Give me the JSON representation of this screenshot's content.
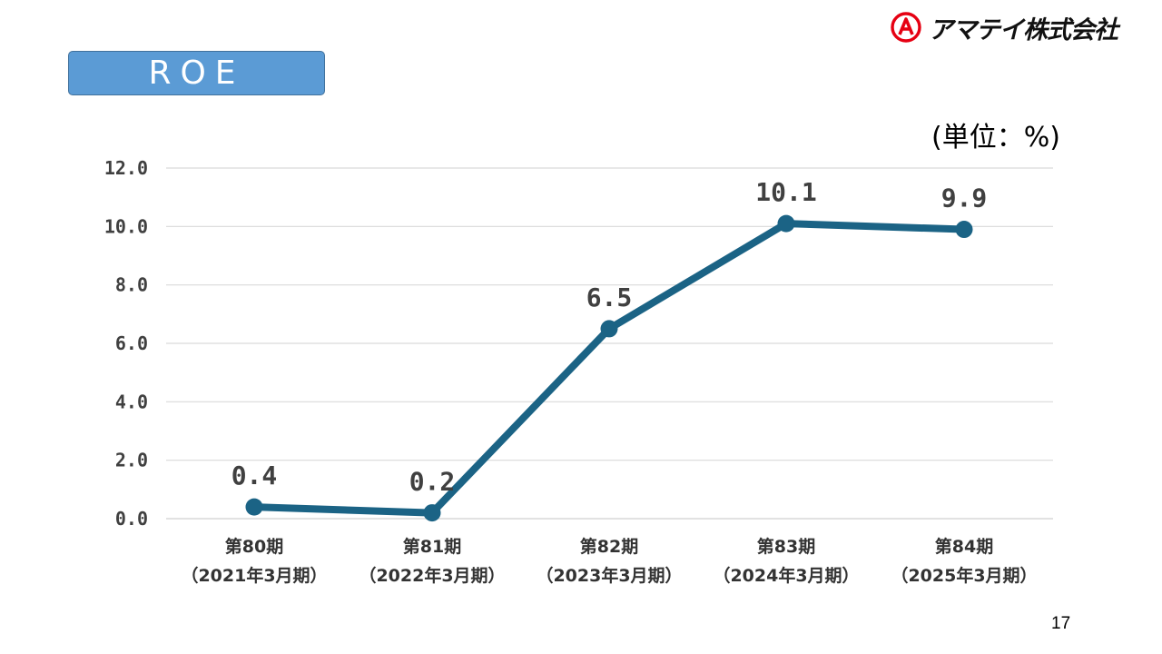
{
  "slide": {
    "title": "ROE",
    "unit": "(単位：%)",
    "page_number": "17"
  },
  "logo": {
    "text": "アマテイ株式会社",
    "mark_letter": "A",
    "mark_color": "#e60012"
  },
  "colors": {
    "title_fill": "#5b9bd5",
    "line": "#1b6385",
    "grid": "#d9d9d9"
  },
  "chart_data": {
    "type": "line",
    "title": "",
    "xlabel": "",
    "ylabel": "",
    "categories": [
      [
        "第80期",
        "（2021年3月期）"
      ],
      [
        "第81期",
        "（2022年3月期）"
      ],
      [
        "第82期",
        "（2023年3月期）"
      ],
      [
        "第83期",
        "（2024年3月期）"
      ],
      [
        "第84期",
        "（2025年3月期）"
      ]
    ],
    "series": [
      {
        "values": [
          0.4,
          0.2,
          6.5,
          10.1,
          9.9
        ],
        "labels": [
          "0.4",
          "0.2",
          "6.5",
          "10.1",
          "9.9"
        ]
      }
    ],
    "ylim": [
      0,
      12
    ],
    "y_ticks": [
      "0.0",
      "2.0",
      "4.0",
      "6.0",
      "8.0",
      "10.0",
      "12.0"
    ],
    "grid": true,
    "legend": "none"
  }
}
